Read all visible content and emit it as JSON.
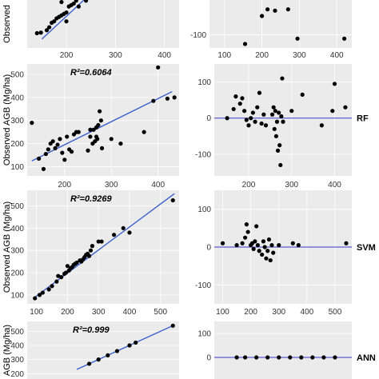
{
  "colors": {
    "panel_bg": "#ebebeb",
    "grid": "#ffffff",
    "point": "#000000",
    "fit_line": "#3a5fcd",
    "zero_line": "#3a3ac8",
    "tick_text": "#333333"
  },
  "chart_data": [
    {
      "id": "row1-scatter",
      "type": "scatter",
      "ylabel": "Observed",
      "r2_label": "",
      "model_label": "",
      "xlim": [
        120,
        430
      ],
      "ylim": [
        60,
        330
      ],
      "x_ticks": [
        200,
        300,
        400
      ],
      "y_ticks": [],
      "fit_line": [
        [
          150,
          90
        ],
        [
          280,
          290
        ]
      ],
      "points": [
        [
          140,
          110
        ],
        [
          148,
          112
        ],
        [
          160,
          120
        ],
        [
          165,
          130
        ],
        [
          170,
          145
        ],
        [
          175,
          150
        ],
        [
          180,
          160
        ],
        [
          185,
          165
        ],
        [
          190,
          170
        ],
        [
          195,
          175
        ],
        [
          200,
          180
        ],
        [
          205,
          200
        ],
        [
          210,
          205
        ],
        [
          215,
          210
        ],
        [
          220,
          220
        ],
        [
          225,
          230
        ],
        [
          230,
          240
        ],
        [
          235,
          250
        ],
        [
          240,
          260
        ],
        [
          245,
          265
        ],
        [
          250,
          270
        ],
        [
          255,
          280
        ],
        [
          260,
          290
        ],
        [
          215,
          240
        ],
        [
          225,
          200
        ],
        [
          240,
          220
        ],
        [
          270,
          300
        ],
        [
          285,
          310
        ],
        [
          300,
          265
        ],
        [
          330,
          310
        ],
        [
          220,
          280
        ],
        [
          250,
          300
        ],
        [
          265,
          305
        ],
        [
          190,
          215
        ],
        [
          200,
          150
        ]
      ],
      "grid": true
    },
    {
      "id": "row1-residual",
      "type": "scatter",
      "xlim": [
        60,
        440
      ],
      "ylim": [
        -150,
        150
      ],
      "x_ticks": [
        100,
        200,
        300,
        400
      ],
      "y_ticks": [
        -100
      ],
      "zero_line": false,
      "points": [
        [
          155,
          -135
        ],
        [
          200,
          -30
        ],
        [
          235,
          -10
        ],
        [
          270,
          -5
        ],
        [
          295,
          -115
        ],
        [
          420,
          -115
        ],
        [
          215,
          -5
        ]
      ],
      "grid": true
    },
    {
      "id": "rf-scatter",
      "type": "scatter",
      "ylabel": "Observed AGB (Mg/ha)",
      "r2_label": "R²=0.6064",
      "model_label": "RF",
      "xlim": [
        120,
        445
      ],
      "ylim": [
        60,
        545
      ],
      "x_ticks": [
        200,
        300,
        400
      ],
      "y_ticks": [
        100,
        200,
        300,
        400,
        500
      ],
      "fit_line": [
        [
          130,
          125
        ],
        [
          430,
          425
        ]
      ],
      "points": [
        [
          130,
          290
        ],
        [
          145,
          135
        ],
        [
          155,
          90
        ],
        [
          160,
          155
        ],
        [
          165,
          175
        ],
        [
          170,
          200
        ],
        [
          175,
          210
        ],
        [
          180,
          180
        ],
        [
          185,
          195
        ],
        [
          190,
          220
        ],
        [
          195,
          160
        ],
        [
          200,
          130
        ],
        [
          205,
          230
        ],
        [
          210,
          175
        ],
        [
          215,
          165
        ],
        [
          220,
          240
        ],
        [
          225,
          250
        ],
        [
          230,
          250
        ],
        [
          250,
          170
        ],
        [
          255,
          230
        ],
        [
          260,
          200
        ],
        [
          262,
          260
        ],
        [
          265,
          210
        ],
        [
          268,
          270
        ],
        [
          270,
          220
        ],
        [
          272,
          280
        ],
        [
          275,
          340
        ],
        [
          278,
          300
        ],
        [
          280,
          180
        ],
        [
          300,
          220
        ],
        [
          320,
          200
        ],
        [
          370,
          250
        ],
        [
          390,
          385
        ],
        [
          400,
          530
        ],
        [
          420,
          395
        ],
        [
          435,
          400
        ],
        [
          268,
          230
        ],
        [
          255,
          260
        ]
      ],
      "grid": true
    },
    {
      "id": "rf-residual",
      "type": "scatter",
      "xlim": [
        120,
        440
      ],
      "ylim": [
        -160,
        150
      ],
      "x_ticks": [
        200,
        300,
        400
      ],
      "y_ticks": [
        -100,
        0,
        100
      ],
      "zero_line": true,
      "points": [
        [
          150,
          0
        ],
        [
          165,
          25
        ],
        [
          170,
          60
        ],
        [
          180,
          40
        ],
        [
          185,
          55
        ],
        [
          190,
          20
        ],
        [
          195,
          -5
        ],
        [
          200,
          -20
        ],
        [
          205,
          0
        ],
        [
          210,
          15
        ],
        [
          215,
          -10
        ],
        [
          220,
          30
        ],
        [
          225,
          70
        ],
        [
          230,
          -15
        ],
        [
          235,
          10
        ],
        [
          240,
          -20
        ],
        [
          255,
          10
        ],
        [
          258,
          30
        ],
        [
          260,
          -30
        ],
        [
          262,
          20
        ],
        [
          264,
          -50
        ],
        [
          266,
          -10
        ],
        [
          268,
          -90
        ],
        [
          270,
          15
        ],
        [
          272,
          -75
        ],
        [
          274,
          -130
        ],
        [
          276,
          5
        ],
        [
          278,
          110
        ],
        [
          280,
          -10
        ],
        [
          300,
          20
        ],
        [
          325,
          65
        ],
        [
          370,
          -20
        ],
        [
          395,
          20
        ],
        [
          400,
          95
        ],
        [
          425,
          30
        ]
      ],
      "grid": true
    },
    {
      "id": "svm-scatter",
      "type": "scatter",
      "ylabel": "Observed AGB (Mg/ha)",
      "r2_label": "R²=0.9269",
      "model_label": "SVM",
      "xlim": [
        70,
        560
      ],
      "ylim": [
        60,
        570
      ],
      "x_ticks": [
        100,
        200,
        300,
        400,
        500
      ],
      "y_ticks": [
        100,
        200,
        300,
        400,
        500
      ],
      "fit_line": [
        [
          90,
          85
        ],
        [
          545,
          555
        ]
      ],
      "points": [
        [
          95,
          85
        ],
        [
          110,
          100
        ],
        [
          120,
          110
        ],
        [
          140,
          125
        ],
        [
          150,
          140
        ],
        [
          165,
          160
        ],
        [
          170,
          185
        ],
        [
          180,
          180
        ],
        [
          190,
          195
        ],
        [
          195,
          200
        ],
        [
          200,
          230
        ],
        [
          205,
          210
        ],
        [
          210,
          220
        ],
        [
          215,
          225
        ],
        [
          220,
          235
        ],
        [
          225,
          240
        ],
        [
          230,
          245
        ],
        [
          240,
          255
        ],
        [
          245,
          250
        ],
        [
          250,
          260
        ],
        [
          255,
          270
        ],
        [
          260,
          280
        ],
        [
          265,
          285
        ],
        [
          270,
          275
        ],
        [
          275,
          300
        ],
        [
          280,
          320
        ],
        [
          300,
          340
        ],
        [
          310,
          340
        ],
        [
          350,
          370
        ],
        [
          380,
          400
        ],
        [
          400,
          380
        ],
        [
          540,
          525
        ]
      ],
      "grid": true
    },
    {
      "id": "svm-residual",
      "type": "scatter",
      "xlim": [
        70,
        560
      ],
      "ylim": [
        -150,
        150
      ],
      "x_ticks": [
        100,
        200,
        300,
        400,
        500
      ],
      "y_ticks": [
        -100,
        0,
        100
      ],
      "zero_line": true,
      "points": [
        [
          100,
          10
        ],
        [
          150,
          5
        ],
        [
          170,
          10
        ],
        [
          180,
          25
        ],
        [
          185,
          60
        ],
        [
          190,
          40
        ],
        [
          200,
          5
        ],
        [
          205,
          10
        ],
        [
          210,
          -5
        ],
        [
          215,
          15
        ],
        [
          220,
          55
        ],
        [
          225,
          5
        ],
        [
          230,
          -10
        ],
        [
          240,
          -20
        ],
        [
          245,
          15
        ],
        [
          250,
          0
        ],
        [
          255,
          -30
        ],
        [
          260,
          -10
        ],
        [
          265,
          20
        ],
        [
          270,
          -35
        ],
        [
          275,
          5
        ],
        [
          280,
          -15
        ],
        [
          300,
          5
        ],
        [
          350,
          10
        ],
        [
          370,
          5
        ],
        [
          540,
          10
        ]
      ],
      "grid": true
    },
    {
      "id": "ann-scatter",
      "type": "scatter",
      "ylabel": "AGB (Mg/ha)",
      "r2_label": "R²=0.999",
      "model_label": "ANN",
      "xlim": [
        70,
        560
      ],
      "ylim": [
        60,
        570
      ],
      "x_ticks": [],
      "y_ticks": [
        100,
        200,
        300,
        400,
        500
      ],
      "fit_line": [
        [
          230,
          230
        ],
        [
          545,
          545
        ]
      ],
      "points": [
        [
          270,
          270
        ],
        [
          300,
          300
        ],
        [
          330,
          330
        ],
        [
          360,
          360
        ],
        [
          400,
          400
        ],
        [
          420,
          420
        ],
        [
          540,
          540
        ]
      ],
      "grid": true
    },
    {
      "id": "ann-residual",
      "type": "scatter",
      "xlim": [
        70,
        560
      ],
      "ylim": [
        -150,
        150
      ],
      "x_ticks": [],
      "y_ticks": [
        0,
        100
      ],
      "zero_line": true,
      "points": [
        [
          150,
          0
        ],
        [
          180,
          0
        ],
        [
          220,
          0
        ],
        [
          260,
          0
        ],
        [
          300,
          0
        ],
        [
          340,
          0
        ],
        [
          380,
          0
        ],
        [
          420,
          0
        ],
        [
          460,
          0
        ],
        [
          500,
          0
        ]
      ],
      "grid": true
    }
  ]
}
